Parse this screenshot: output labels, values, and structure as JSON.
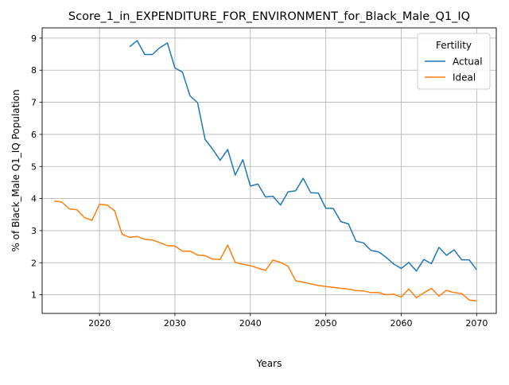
{
  "chart_data": {
    "type": "line",
    "title": "Score_1_in_EXPENDITURE_FOR_ENVIRONMENT_for_Black_Male_Q1_IQ",
    "xlabel": "Years",
    "ylabel": "% of Black_Male Q1_IQ Population",
    "xlim": [
      2012.4,
      2072.6
    ],
    "ylim": [
      0.42,
      9.32
    ],
    "xticks": [
      2020,
      2030,
      2040,
      2050,
      2060,
      2070
    ],
    "yticks": [
      1,
      2,
      3,
      4,
      5,
      6,
      7,
      8,
      9
    ],
    "grid": true,
    "legend": {
      "title": "Fertility",
      "position": "upper right"
    },
    "series": [
      {
        "name": "Actual",
        "color": "#1f77b4",
        "x": [
          2024,
          2025,
          2026,
          2027,
          2028,
          2029,
          2030,
          2031,
          2032,
          2033,
          2034,
          2035,
          2036,
          2037,
          2038,
          2039,
          2040,
          2041,
          2042,
          2043,
          2044,
          2045,
          2046,
          2047,
          2048,
          2049,
          2050,
          2051,
          2052,
          2053,
          2054,
          2055,
          2056,
          2057,
          2058,
          2059,
          2060,
          2061,
          2062,
          2063,
          2064,
          2065,
          2066,
          2067,
          2068,
          2069,
          2070
        ],
        "y": [
          8.73,
          8.92,
          8.49,
          8.49,
          8.7,
          8.85,
          8.07,
          7.94,
          7.2,
          6.99,
          5.84,
          5.54,
          5.19,
          5.53,
          4.73,
          5.21,
          4.39,
          4.45,
          4.05,
          4.07,
          3.8,
          4.21,
          4.24,
          4.63,
          4.18,
          4.17,
          3.7,
          3.69,
          3.28,
          3.21,
          2.67,
          2.62,
          2.38,
          2.34,
          2.17,
          1.96,
          1.82,
          2.01,
          1.74,
          2.1,
          1.97,
          2.48,
          2.23,
          2.4,
          2.09,
          2.09,
          1.78
        ]
      },
      {
        "name": "Ideal",
        "color": "#ff7f0e",
        "x": [
          2014,
          2015,
          2016,
          2017,
          2018,
          2019,
          2020,
          2021,
          2022,
          2023,
          2024,
          2025,
          2026,
          2027,
          2028,
          2029,
          2030,
          2031,
          2032,
          2033,
          2034,
          2035,
          2036,
          2037,
          2038,
          2039,
          2040,
          2041,
          2042,
          2043,
          2044,
          2045,
          2046,
          2047,
          2048,
          2049,
          2050,
          2051,
          2052,
          2053,
          2054,
          2055,
          2056,
          2057,
          2058,
          2059,
          2060,
          2061,
          2062,
          2063,
          2064,
          2065,
          2066,
          2067,
          2068,
          2069,
          2070
        ],
        "y": [
          3.92,
          3.89,
          3.68,
          3.65,
          3.41,
          3.32,
          3.82,
          3.8,
          3.62,
          2.89,
          2.79,
          2.82,
          2.73,
          2.71,
          2.63,
          2.53,
          2.52,
          2.36,
          2.36,
          2.24,
          2.22,
          2.11,
          2.1,
          2.55,
          2.01,
          1.95,
          1.91,
          1.83,
          1.76,
          2.08,
          2.01,
          1.89,
          1.44,
          1.39,
          1.34,
          1.29,
          1.26,
          1.23,
          1.2,
          1.18,
          1.13,
          1.12,
          1.07,
          1.07,
          1.0,
          1.02,
          0.93,
          1.18,
          0.91,
          1.06,
          1.2,
          0.96,
          1.14,
          1.07,
          1.04,
          0.84,
          0.81
        ]
      }
    ]
  }
}
